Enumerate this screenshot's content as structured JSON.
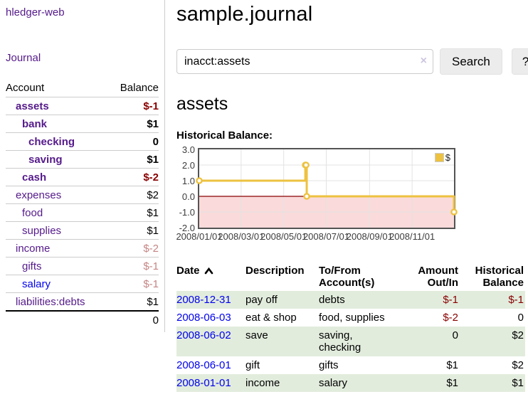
{
  "sidebar": {
    "app_title": "hledger-web",
    "journal_link": "Journal",
    "accounts_header": {
      "account": "Account",
      "balance": "Balance"
    },
    "accounts": [
      {
        "name": "assets",
        "balance": "$-1",
        "indent": 1,
        "bold": true,
        "dim": false,
        "blue": false
      },
      {
        "name": "bank",
        "balance": "$1",
        "indent": 2,
        "bold": true,
        "dim": false,
        "blue": false
      },
      {
        "name": "checking",
        "balance": "0",
        "indent": 3,
        "bold": true,
        "dim": false,
        "blue": false
      },
      {
        "name": "saving",
        "balance": "$1",
        "indent": 3,
        "bold": true,
        "dim": false,
        "blue": false
      },
      {
        "name": "cash",
        "balance": "$-2",
        "indent": 2,
        "bold": true,
        "dim": false,
        "blue": false
      },
      {
        "name": "expenses",
        "balance": "$2",
        "indent": 1,
        "bold": false,
        "dim": false,
        "blue": false
      },
      {
        "name": "food",
        "balance": "$1",
        "indent": 2,
        "bold": false,
        "dim": false,
        "blue": false
      },
      {
        "name": "supplies",
        "balance": "$1",
        "indent": 2,
        "bold": false,
        "dim": false,
        "blue": false
      },
      {
        "name": "income",
        "balance": "$-2",
        "indent": 1,
        "bold": false,
        "dim": true,
        "blue": false
      },
      {
        "name": "gifts",
        "balance": "$-1",
        "indent": 2,
        "bold": false,
        "dim": true,
        "blue": false
      },
      {
        "name": "salary",
        "balance": "$-1",
        "indent": 2,
        "bold": false,
        "dim": true,
        "blue": true
      },
      {
        "name": "liabilities:debts",
        "balance": "$1",
        "indent": 1,
        "bold": false,
        "dim": false,
        "blue": false
      }
    ],
    "total": "0"
  },
  "header": {
    "title": "sample.journal"
  },
  "search": {
    "value": "inacct:assets",
    "clear_icon": "×",
    "button_label": "Search",
    "help_label": "?"
  },
  "account_page": {
    "title": "assets",
    "chart_label": "Historical Balance:"
  },
  "chart_data": {
    "type": "line",
    "title": "Historical Balance",
    "steps": true,
    "grid": true,
    "legend": {
      "label": "$",
      "position": "top-right"
    },
    "series": [
      {
        "name": "$",
        "color": "#edc240",
        "points": [
          {
            "x": "2008-01-01",
            "y": 1
          },
          {
            "x": "2008-06-01",
            "y": 2
          },
          {
            "x": "2008-06-02",
            "y": 2
          },
          {
            "x": "2008-06-03",
            "y": 0
          },
          {
            "x": "2008-12-31",
            "y": -1
          }
        ]
      }
    ],
    "xlim": [
      "2008-01-01",
      "2008-12-31"
    ],
    "ylim": [
      -2,
      3
    ],
    "yticks": [
      "3.0",
      "2.0",
      "1.0",
      "0.0",
      "-1.0",
      "-2.0"
    ],
    "xticks": [
      "2008/01/01",
      "2008/03/01",
      "2008/05/01",
      "2008/07/01",
      "2008/09/01",
      "2008/11/01"
    ],
    "zero_line_color": "#8b0000",
    "negative_region_color": "#fadada",
    "plot_border_color": "#545454"
  },
  "register": {
    "columns": [
      {
        "label": "Date"
      },
      {
        "label": "Description"
      },
      {
        "label": "To/From Account(s)"
      },
      {
        "label": "Amount Out/In"
      },
      {
        "label": "Historical Balance"
      }
    ],
    "rows": [
      {
        "date": "2008-12-31",
        "description": "pay off",
        "accounts": "debts",
        "amount": "$-1",
        "balance": "$-1"
      },
      {
        "date": "2008-06-03",
        "description": "eat & shop",
        "accounts": "food, supplies",
        "amount": "$-2",
        "balance": "0"
      },
      {
        "date": "2008-06-02",
        "description": "save",
        "accounts": "saving, checking",
        "amount": "0",
        "balance": "$2"
      },
      {
        "date": "2008-06-01",
        "description": "gift",
        "accounts": "gifts",
        "amount": "$1",
        "balance": "$2"
      },
      {
        "date": "2008-01-01",
        "description": "income",
        "accounts": "salary",
        "amount": "$1",
        "balance": "$1"
      }
    ]
  }
}
